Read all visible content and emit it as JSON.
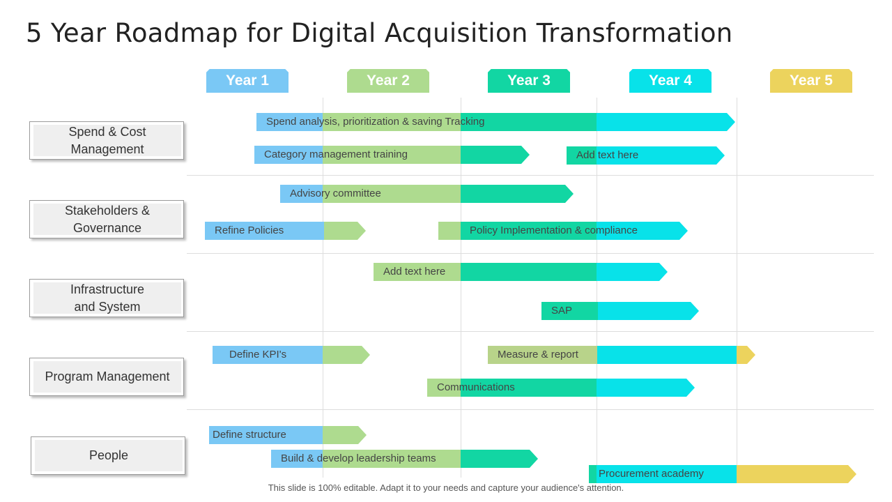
{
  "title": "5 Year Roadmap for Digital Acquisition Transformation",
  "footer": "This slide is 100% editable. Adapt it to your needs and capture your audience's attention.",
  "colors": {
    "year1": "#7ac8f5",
    "year2": "#aedb8f",
    "year3": "#12d6a3",
    "year4": "#08e2e9",
    "year5": "#ecd35d"
  },
  "years": [
    "Year 1",
    "Year 2",
    "Year 3",
    "Year 4",
    "Year 5"
  ],
  "categories": [
    "Spend & Cost\nManagement",
    "Stakeholders &\nGovernance",
    "Infrastructure\nand System",
    "Program Management",
    "People"
  ],
  "tasks": [
    "Spend analysis, prioritization & saving Tracking",
    "Category management training",
    "Add text here",
    "Advisory committee",
    "Refine Policies",
    "Policy Implementation & compliance",
    "Add text here",
    "SAP",
    "Define KPI's",
    "Measure & report",
    "Communications",
    "Define structure",
    "Build & develop leadership teams",
    "Procurement academy"
  ]
}
